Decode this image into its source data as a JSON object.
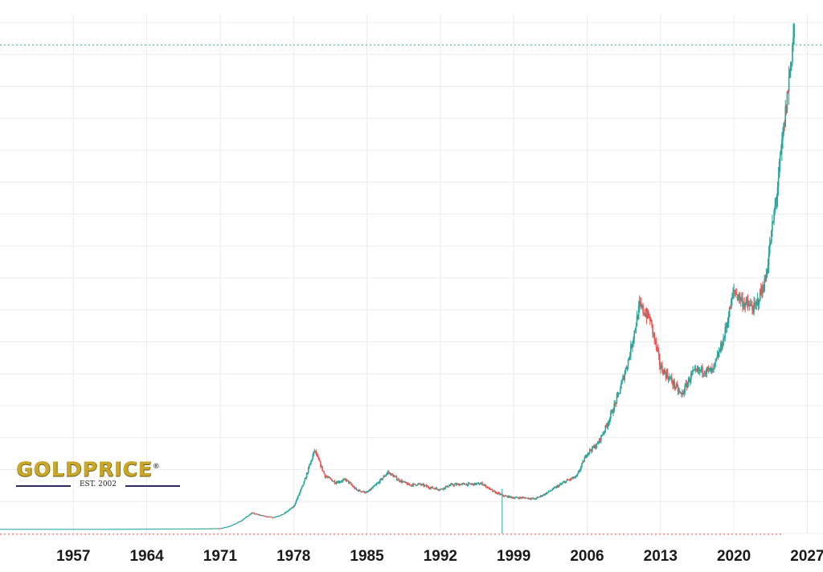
{
  "chart_data": {
    "type": "candlestick",
    "title": "",
    "xlabel": "",
    "ylabel": "",
    "x_ticks": [
      "1957",
      "1964",
      "1971",
      "1978",
      "1985",
      "1992",
      "1999",
      "2006",
      "2013",
      "2020",
      "2027"
    ],
    "xlim": [
      1950,
      2028.5
    ],
    "ylim": [
      0,
      4000
    ],
    "grid": true,
    "colors": {
      "up": "#26a69a",
      "down": "#ef5350",
      "grid": "#ececec",
      "last_price_line": "#26a69a"
    },
    "series": [
      {
        "values_note_free": true,
        "points": [
          [
            1950,
            35
          ],
          [
            1960,
            35
          ],
          [
            1968,
            38
          ],
          [
            1971,
            40
          ],
          [
            1972,
            60
          ],
          [
            1973,
            100
          ],
          [
            1974,
            160
          ],
          [
            1975,
            140
          ],
          [
            1976,
            125
          ],
          [
            1977,
            150
          ],
          [
            1978,
            210
          ],
          [
            1979,
            400
          ],
          [
            1980,
            650
          ],
          [
            1981,
            450
          ],
          [
            1982,
            400
          ],
          [
            1983,
            420
          ],
          [
            1984,
            340
          ],
          [
            1985,
            320
          ],
          [
            1986,
            390
          ],
          [
            1987,
            480
          ],
          [
            1988,
            420
          ],
          [
            1989,
            380
          ],
          [
            1990,
            385
          ],
          [
            1991,
            360
          ],
          [
            1992,
            345
          ],
          [
            1993,
            380
          ],
          [
            1994,
            385
          ],
          [
            1995,
            385
          ],
          [
            1996,
            390
          ],
          [
            1997,
            330
          ],
          [
            1998,
            295
          ],
          [
            1999,
            280
          ],
          [
            2000,
            280
          ],
          [
            2001,
            270
          ],
          [
            2002,
            310
          ],
          [
            2003,
            360
          ],
          [
            2004,
            410
          ],
          [
            2005,
            445
          ],
          [
            2006,
            630
          ],
          [
            2007,
            700
          ],
          [
            2008,
            870
          ],
          [
            2009,
            1090
          ],
          [
            2010,
            1380
          ],
          [
            2011,
            1780
          ],
          [
            2012,
            1680
          ],
          [
            2013,
            1300
          ],
          [
            2014,
            1200
          ],
          [
            2015,
            1080
          ],
          [
            2016,
            1250
          ],
          [
            2017,
            1280
          ],
          [
            2018,
            1270
          ],
          [
            2019,
            1520
          ],
          [
            2020,
            1900
          ],
          [
            2021,
            1800
          ],
          [
            2022,
            1760
          ],
          [
            2023,
            1980
          ],
          [
            2024,
            2600
          ],
          [
            2025,
            3350
          ],
          [
            2025.8,
            4000
          ]
        ]
      }
    ],
    "spike": {
      "x": 1997.9,
      "low": 0,
      "high": 350
    },
    "last_price_marker_y": 3780
  },
  "logo": {
    "wordmark": "GOLDPRICE",
    "registered": "®",
    "tagline": "EST. 2002"
  }
}
